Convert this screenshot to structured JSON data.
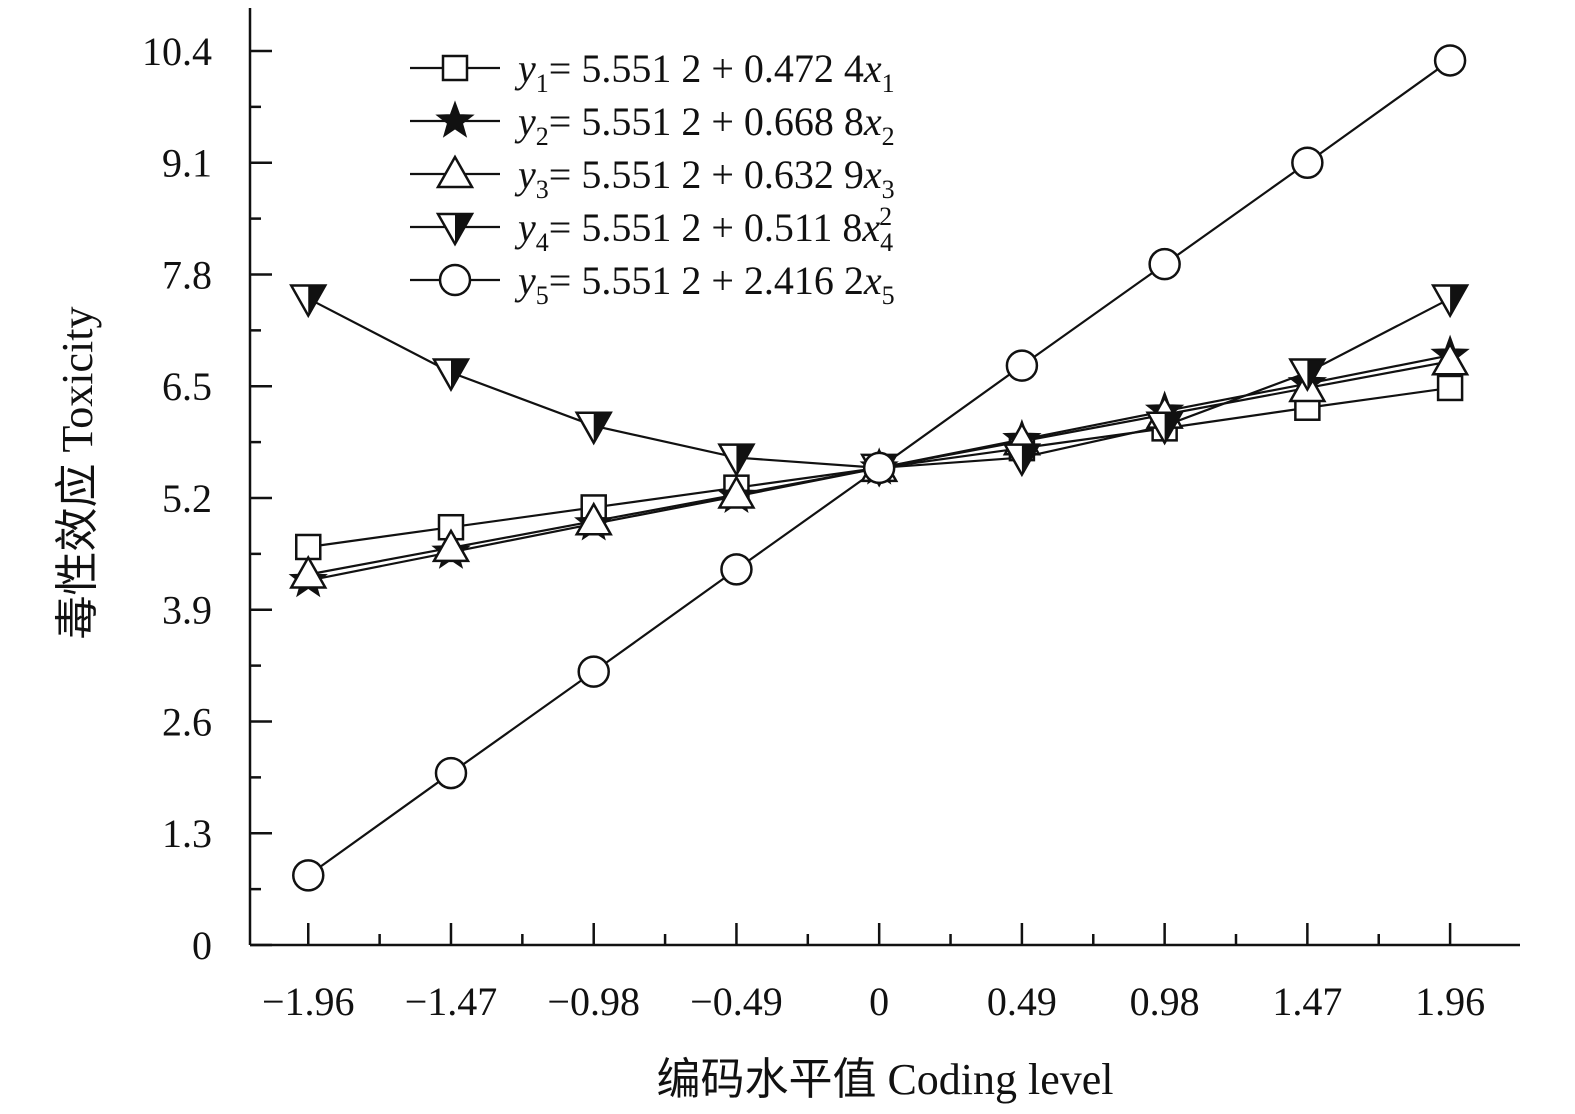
{
  "chart_data": {
    "type": "line",
    "xlabel": "编码水平值 Coding level",
    "ylabel": "毒性效应 Toxicity",
    "x": [
      -1.96,
      -1.47,
      -0.98,
      -0.49,
      0,
      0.49,
      0.98,
      1.47,
      1.96
    ],
    "x_tick_labels": [
      "−1.96",
      "−1.47",
      "−0.98",
      "−0.49",
      "0",
      "0.49",
      "0.98",
      "1.47",
      "1.96"
    ],
    "xlim": [
      -2.16,
      2.2
    ],
    "ylim": [
      0,
      10.9
    ],
    "y_ticks": [
      0,
      1.3,
      2.6,
      3.9,
      5.2,
      6.5,
      7.8,
      9.1,
      10.4
    ],
    "y_tick_labels": [
      "0",
      "1.3",
      "2.6",
      "3.9",
      "5.2",
      "6.5",
      "7.8",
      "9.1",
      "10.4"
    ],
    "grid": false,
    "legend_position": "top-left",
    "series": [
      {
        "marker": "open-square",
        "legend": {
          "var": "y",
          "sub": "1",
          "text": "= 5.551 2 + 0.472 4",
          "xvar": "x",
          "xsub": "1",
          "sup": ""
        },
        "values": [
          4.63,
          4.86,
          5.09,
          5.32,
          5.55,
          5.78,
          6.01,
          6.25,
          6.48
        ]
      },
      {
        "marker": "filled-star",
        "legend": {
          "var": "y",
          "sub": "2",
          "text": "= 5.551 2 + 0.668 8",
          "xvar": "x",
          "xsub": "2",
          "sup": ""
        },
        "values": [
          4.24,
          4.57,
          4.9,
          5.22,
          5.55,
          5.88,
          6.21,
          6.53,
          6.86
        ]
      },
      {
        "marker": "open-triangle-up",
        "legend": {
          "var": "y",
          "sub": "3",
          "text": "= 5.551 2 + 0.632 9",
          "xvar": "x",
          "xsub": "3",
          "sup": ""
        },
        "values": [
          4.31,
          4.62,
          4.93,
          5.24,
          5.55,
          5.86,
          6.17,
          6.48,
          6.79
        ]
      },
      {
        "marker": "half-filled-triangle-down",
        "legend": {
          "var": "y",
          "sub": "4",
          "text": "= 5.551 2 + 0.511 8",
          "xvar": "x",
          "xsub": "4",
          "sup": "2"
        },
        "values": [
          7.52,
          6.66,
          6.04,
          5.67,
          5.55,
          5.67,
          6.04,
          6.66,
          7.52
        ]
      },
      {
        "marker": "open-circle",
        "legend": {
          "var": "y",
          "sub": "5",
          "text": "= 5.551 2 + 2.416 2",
          "xvar": "x",
          "xsub": "5",
          "sup": ""
        },
        "values": [
          0.81,
          2.0,
          3.18,
          4.37,
          5.55,
          6.74,
          7.92,
          9.1,
          10.29
        ]
      }
    ]
  }
}
